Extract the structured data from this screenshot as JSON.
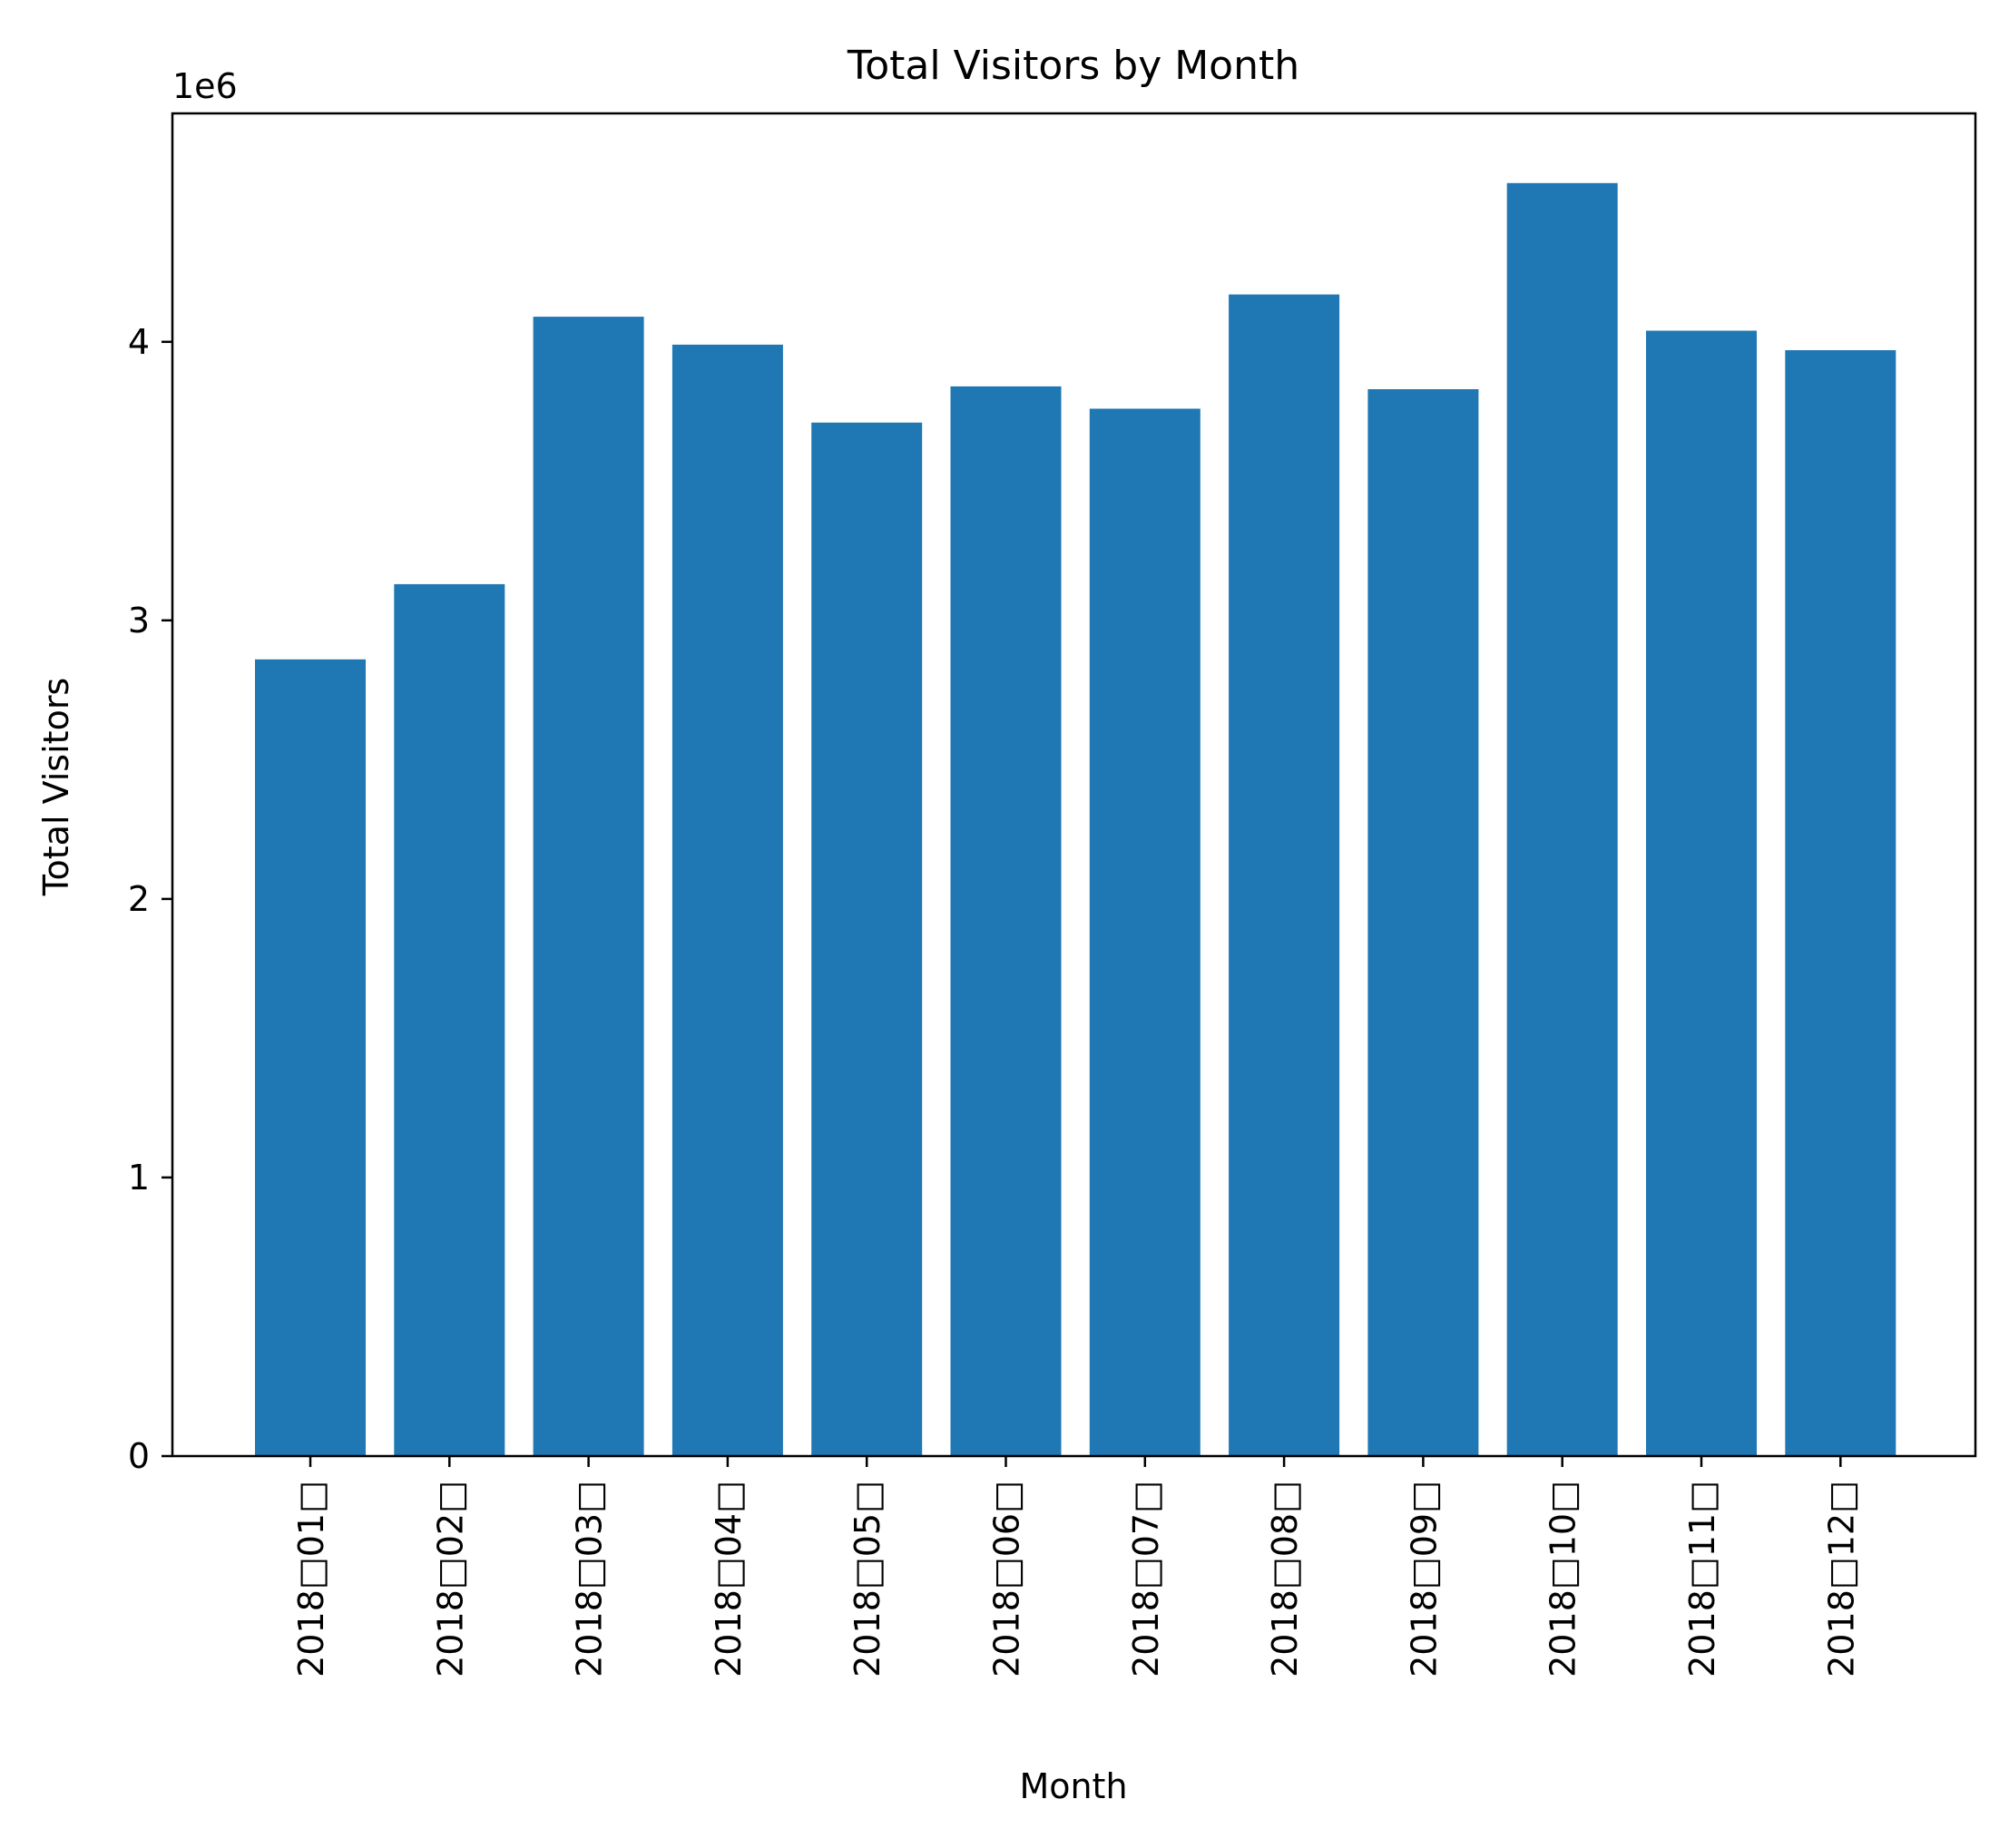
{
  "chart_data": {
    "type": "bar",
    "title": "Total Visitors by Month",
    "xlabel": "Month",
    "ylabel": "Total Visitors",
    "y_offset_label": "1e6",
    "categories": [
      "2018□01□",
      "2018□02□",
      "2018□03□",
      "2018□04□",
      "2018□05□",
      "2018□06□",
      "2018□07□",
      "2018□08□",
      "2018□09□",
      "2018□10□",
      "2018□11□",
      "2018□12□"
    ],
    "values": [
      2860000,
      3130000,
      4090000,
      3990000,
      3710000,
      3840000,
      3760000,
      4170000,
      3830000,
      4570000,
      4040000,
      3970000
    ],
    "ylim": [
      0,
      4820000
    ],
    "yticks": [
      0,
      1000000,
      2000000,
      3000000,
      4000000
    ],
    "ytick_labels": [
      "0",
      "1",
      "2",
      "3",
      "4"
    ],
    "bar_color": "#1f77b4",
    "grid": false,
    "legend": "none"
  }
}
